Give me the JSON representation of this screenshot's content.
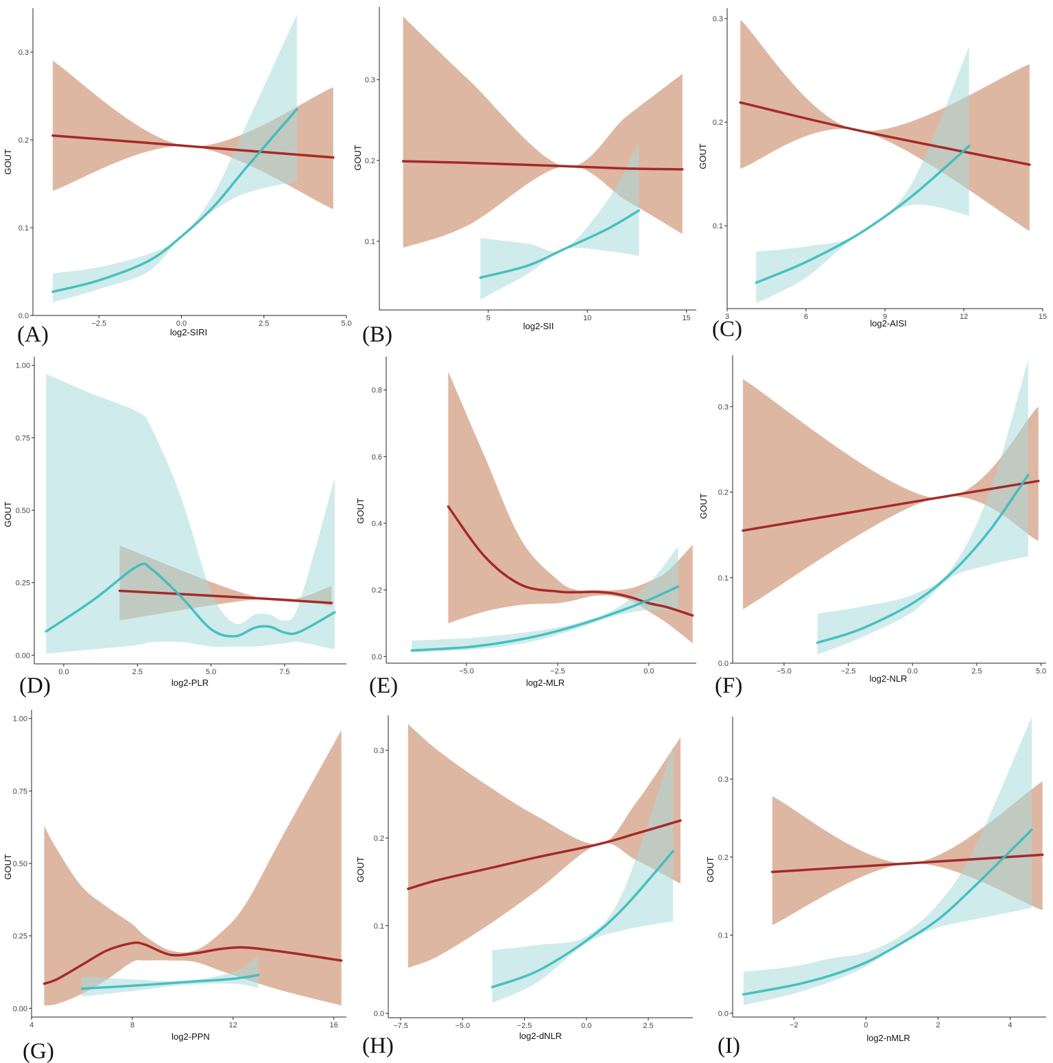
{
  "colors": {
    "red_line": "#a52a2a",
    "red_band": "#c98a6b",
    "teal_line": "#3bbcbc",
    "teal_band": "#a9dada"
  },
  "chart_data": [
    {
      "type": "line",
      "label": "(A)",
      "xlabel": "log2-SIRI",
      "ylabel": "GOUT",
      "xlim": [
        -4.5,
        5.0
      ],
      "ylim": [
        0,
        0.35
      ],
      "xticks": [
        -2.5,
        0.0,
        2.5,
        5.0
      ],
      "xtick_labels": [
        "−2.5",
        "0.0",
        "2.5",
        "5.0"
      ],
      "yticks": [
        0.0,
        0.1,
        0.2,
        0.3
      ],
      "ytick_labels": [
        "0.0",
        "0.1",
        "0.2",
        "0.3"
      ],
      "series": [
        {
          "name": "red",
          "x": [
            -3.9,
            0.2,
            4.6
          ],
          "y": [
            0.205,
            0.193,
            0.18
          ],
          "lower": [
            0.142,
            0.193,
            0.121
          ],
          "upper": [
            0.29,
            0.193,
            0.26
          ]
        },
        {
          "name": "teal",
          "x": [
            -3.9,
            -2.5,
            -1,
            0,
            1,
            2,
            3.5
          ],
          "y": [
            0.027,
            0.04,
            0.062,
            0.09,
            0.125,
            0.17,
            0.235
          ],
          "lower": [
            0.015,
            0.03,
            0.05,
            0.09,
            0.12,
            0.14,
            0.153
          ],
          "upper": [
            0.048,
            0.055,
            0.07,
            0.09,
            0.14,
            0.22,
            0.343
          ]
        }
      ]
    },
    {
      "type": "line",
      "label": "(B)",
      "xlabel": "log2-SII",
      "ylabel": "GOUT",
      "xlim": [
        -0.5,
        15.5
      ],
      "ylim": [
        0.015,
        0.39
      ],
      "xticks": [
        5,
        10,
        15
      ],
      "xtick_labels": [
        "5",
        "10",
        "15"
      ],
      "yticks": [
        0.1,
        0.2,
        0.3
      ],
      "ytick_labels": [
        "0.1",
        "0.2",
        "0.3"
      ],
      "series": [
        {
          "name": "red",
          "x": [
            0.7,
            4,
            8.8,
            12,
            14.8
          ],
          "y": [
            0.199,
            0.197,
            0.193,
            0.19,
            0.189
          ],
          "lower": [
            0.092,
            0.12,
            0.193,
            0.15,
            0.109
          ],
          "upper": [
            0.378,
            0.3,
            0.193,
            0.255,
            0.307
          ]
        },
        {
          "name": "teal",
          "x": [
            4.6,
            7,
            8.8,
            11,
            12.6
          ],
          "y": [
            0.055,
            0.07,
            0.09,
            0.115,
            0.138
          ],
          "lower": [
            0.028,
            0.06,
            0.09,
            0.088,
            0.082
          ],
          "upper": [
            0.104,
            0.097,
            0.09,
            0.15,
            0.222
          ]
        }
      ]
    },
    {
      "type": "line",
      "label": "(C)",
      "xlabel": "log2-AISI",
      "ylabel": "GOUT",
      "xlim": [
        3,
        15
      ],
      "ylim": [
        0.02,
        0.31
      ],
      "xticks": [
        3,
        6,
        9,
        12,
        15
      ],
      "xtick_labels": [
        "3",
        "6",
        "9",
        "12",
        "15"
      ],
      "yticks": [
        0.1,
        0.2,
        0.3
      ],
      "ytick_labels": [
        "0.1",
        "0.2",
        "0.3"
      ],
      "series": [
        {
          "name": "red",
          "x": [
            3.5,
            8,
            14.5
          ],
          "y": [
            0.219,
            0.192,
            0.159
          ],
          "lower": [
            0.155,
            0.192,
            0.095
          ],
          "upper": [
            0.299,
            0.192,
            0.256
          ]
        },
        {
          "name": "teal",
          "x": [
            4.1,
            6,
            8,
            10,
            12.2
          ],
          "y": [
            0.045,
            0.065,
            0.092,
            0.128,
            0.177
          ],
          "lower": [
            0.025,
            0.05,
            0.092,
            0.12,
            0.11
          ],
          "upper": [
            0.075,
            0.08,
            0.092,
            0.14,
            0.273
          ]
        }
      ]
    },
    {
      "type": "line",
      "label": "(D)",
      "xlabel": "log2-PLR",
      "ylabel": "GOUT",
      "xlim": [
        -1.0,
        9.6
      ],
      "ylim": [
        -0.03,
        1.03
      ],
      "xticks": [
        0.0,
        2.5,
        5.0,
        7.5
      ],
      "xtick_labels": [
        "0.0",
        "2.5",
        "5.0",
        "7.5"
      ],
      "yticks": [
        0.0,
        0.25,
        0.5,
        0.75,
        1.0
      ],
      "ytick_labels": [
        "0.00",
        "0.25",
        "0.50",
        "0.75",
        "1.00"
      ],
      "series": [
        {
          "name": "red",
          "x": [
            1.9,
            6.8,
            9.1
          ],
          "y": [
            0.222,
            0.195,
            0.18
          ],
          "lower": [
            0.12,
            0.195,
            0.17
          ],
          "upper": [
            0.378,
            0.195,
            0.238
          ]
        },
        {
          "name": "teal",
          "x": [
            -0.6,
            1,
            2.5,
            3,
            4,
            5,
            5.8,
            6.5,
            7,
            7.5,
            8,
            9.2
          ],
          "y": [
            0.082,
            0.19,
            0.307,
            0.295,
            0.2,
            0.09,
            0.065,
            0.095,
            0.098,
            0.078,
            0.08,
            0.148
          ],
          "lower": [
            0.005,
            0.02,
            0.035,
            0.045,
            0.045,
            0.03,
            0.03,
            0.03,
            0.035,
            0.04,
            0.045,
            0.02
          ],
          "upper": [
            0.97,
            0.9,
            0.84,
            0.78,
            0.54,
            0.22,
            0.11,
            0.14,
            0.14,
            0.12,
            0.18,
            0.61
          ]
        }
      ]
    },
    {
      "type": "line",
      "label": "(E)",
      "xlabel": "log2-MLR",
      "ylabel": "GOUT",
      "xlim": [
        -7.2,
        1.3
      ],
      "ylim": [
        -0.02,
        0.9
      ],
      "xticks": [
        -5.0,
        -2.5,
        0.0
      ],
      "xtick_labels": [
        "−5.0",
        "−2.5",
        "0.0"
      ],
      "yticks": [
        0.0,
        0.2,
        0.4,
        0.6,
        0.8
      ],
      "ytick_labels": [
        "0.0",
        "0.2",
        "0.4",
        "0.6",
        "0.8"
      ],
      "series": [
        {
          "name": "red",
          "x": [
            -5.5,
            -4.5,
            -3.5,
            -2.5,
            -2,
            -1.5,
            -1,
            -0.5,
            0,
            0.5,
            1.2
          ],
          "y": [
            0.45,
            0.3,
            0.215,
            0.195,
            0.193,
            0.194,
            0.19,
            0.178,
            0.16,
            0.148,
            0.123
          ],
          "lower": [
            0.1,
            0.135,
            0.155,
            0.16,
            0.17,
            0.182,
            0.182,
            0.168,
            0.135,
            0.1,
            0.04
          ],
          "upper": [
            0.855,
            0.6,
            0.35,
            0.23,
            0.2,
            0.199,
            0.199,
            0.205,
            0.225,
            0.255,
            0.335
          ]
        },
        {
          "name": "teal",
          "x": [
            -6.5,
            -5,
            -4,
            -3,
            -2,
            -1,
            0,
            0.8
          ],
          "y": [
            0.018,
            0.028,
            0.042,
            0.063,
            0.092,
            0.128,
            0.17,
            0.21
          ],
          "lower": [
            0.012,
            0.02,
            0.03,
            0.05,
            0.082,
            0.12,
            0.14,
            0.135
          ],
          "upper": [
            0.048,
            0.055,
            0.065,
            0.078,
            0.1,
            0.138,
            0.22,
            0.33
          ]
        }
      ]
    },
    {
      "type": "line",
      "label": "(F)",
      "xlabel": "log2-NLR",
      "ylabel": "GOUT",
      "xlim": [
        -7.0,
        5.2
      ],
      "ylim": [
        0,
        0.36
      ],
      "xticks": [
        -5.0,
        -2.5,
        0.0,
        2.5,
        5.0
      ],
      "xtick_labels": [
        "−5.0",
        "−2.5",
        "0.0",
        "2.5",
        "5.0"
      ],
      "yticks": [
        0.0,
        0.1,
        0.2,
        0.3
      ],
      "ytick_labels": [
        "0.0",
        "0.1",
        "0.2",
        "0.3"
      ],
      "series": [
        {
          "name": "red",
          "x": [
            -6.6,
            0.9,
            4.9
          ],
          "y": [
            0.155,
            0.193,
            0.213
          ],
          "lower": [
            0.063,
            0.193,
            0.143
          ],
          "upper": [
            0.332,
            0.193,
            0.3
          ]
        },
        {
          "name": "teal",
          "x": [
            -3.7,
            -2,
            0,
            1.5,
            3,
            4.5
          ],
          "y": [
            0.024,
            0.04,
            0.07,
            0.105,
            0.155,
            0.22
          ],
          "lower": [
            0.01,
            0.03,
            0.06,
            0.1,
            0.115,
            0.125
          ],
          "upper": [
            0.058,
            0.066,
            0.08,
            0.11,
            0.2,
            0.355
          ]
        }
      ]
    },
    {
      "type": "line",
      "label": "(G)",
      "xlabel": "log2-PPN",
      "ylabel": "GOUT",
      "xlim": [
        4,
        16.5
      ],
      "ylim": [
        -0.03,
        1.03
      ],
      "xticks": [
        4,
        8,
        12,
        16
      ],
      "xtick_labels": [
        "4",
        "8",
        "12",
        "16"
      ],
      "yticks": [
        0.0,
        0.25,
        0.5,
        0.75,
        1.0
      ],
      "ytick_labels": [
        "0.00",
        "0.25",
        "0.50",
        "0.75",
        "1.00"
      ],
      "series": [
        {
          "name": "red",
          "x": [
            4.5,
            5,
            6,
            7,
            8,
            8.5,
            9.5,
            10.5,
            11.5,
            12.5,
            14,
            16.3
          ],
          "y": [
            0.085,
            0.1,
            0.15,
            0.2,
            0.225,
            0.22,
            0.185,
            0.19,
            0.205,
            0.21,
            0.195,
            0.165
          ],
          "lower": [
            0.01,
            0.015,
            0.05,
            0.1,
            0.16,
            0.165,
            0.165,
            0.16,
            0.13,
            0.1,
            0.06,
            0.01
          ],
          "upper": [
            0.63,
            0.55,
            0.42,
            0.35,
            0.29,
            0.25,
            0.2,
            0.2,
            0.26,
            0.36,
            0.6,
            0.96
          ]
        },
        {
          "name": "teal",
          "x": [
            6,
            8,
            10,
            12,
            13
          ],
          "y": [
            0.068,
            0.078,
            0.09,
            0.102,
            0.115
          ],
          "lower": [
            0.04,
            0.06,
            0.08,
            0.085,
            0.07
          ],
          "upper": [
            0.11,
            0.1,
            0.095,
            0.125,
            0.18
          ]
        }
      ]
    },
    {
      "type": "line",
      "label": "(H)",
      "xlabel": "log2-dNLR",
      "ylabel": "GOUT",
      "xlim": [
        -8.0,
        4.3
      ],
      "ylim": [
        -0.005,
        0.34
      ],
      "xticks": [
        -7.5,
        -5.0,
        -2.5,
        0.0,
        2.5
      ],
      "xtick_labels": [
        "−7.5",
        "−5.0",
        "−2.5",
        "0.0",
        "2.5"
      ],
      "yticks": [
        0.0,
        0.1,
        0.2,
        0.3
      ],
      "ytick_labels": [
        "0.0",
        "0.1",
        "0.2",
        "0.3"
      ],
      "series": [
        {
          "name": "red",
          "x": [
            -7.2,
            -6,
            -4,
            -2,
            0.5,
            2,
            3.8
          ],
          "y": [
            0.142,
            0.152,
            0.165,
            0.178,
            0.193,
            0.205,
            0.22
          ],
          "lower": [
            0.052,
            0.065,
            0.1,
            0.14,
            0.193,
            0.175,
            0.148
          ],
          "upper": [
            0.33,
            0.3,
            0.26,
            0.225,
            0.193,
            0.24,
            0.315
          ]
        },
        {
          "name": "teal",
          "x": [
            -3.8,
            -2,
            0,
            1.5,
            3.5
          ],
          "y": [
            0.03,
            0.048,
            0.083,
            0.12,
            0.185
          ],
          "lower": [
            0.012,
            0.035,
            0.08,
            0.095,
            0.105
          ],
          "upper": [
            0.072,
            0.078,
            0.088,
            0.14,
            0.305
          ]
        }
      ]
    },
    {
      "type": "line",
      "label": "(I)",
      "xlabel": "log2-nMLR",
      "ylabel": "GOUT",
      "xlim": [
        -3.7,
        5.0
      ],
      "ylim": [
        -0.005,
        0.38
      ],
      "xticks": [
        -2,
        0,
        2,
        4
      ],
      "xtick_labels": [
        "−2",
        "0",
        "2",
        "4"
      ],
      "yticks": [
        0.0,
        0.1,
        0.2,
        0.3
      ],
      "ytick_labels": [
        "0.0",
        "0.1",
        "0.2",
        "0.3"
      ],
      "series": [
        {
          "name": "red",
          "x": [
            -2.6,
            1.2,
            4.9
          ],
          "y": [
            0.181,
            0.192,
            0.203
          ],
          "lower": [
            0.113,
            0.192,
            0.132
          ],
          "upper": [
            0.278,
            0.192,
            0.297
          ]
        },
        {
          "name": "teal",
          "x": [
            -3.4,
            -2,
            -1,
            0,
            1,
            2,
            3,
            4.6
          ],
          "y": [
            0.024,
            0.036,
            0.048,
            0.065,
            0.09,
            0.12,
            0.162,
            0.235
          ],
          "lower": [
            0.01,
            0.025,
            0.04,
            0.06,
            0.09,
            0.11,
            0.12,
            0.135
          ],
          "upper": [
            0.053,
            0.06,
            0.07,
            0.078,
            0.1,
            0.14,
            0.21,
            0.38
          ]
        }
      ]
    }
  ]
}
